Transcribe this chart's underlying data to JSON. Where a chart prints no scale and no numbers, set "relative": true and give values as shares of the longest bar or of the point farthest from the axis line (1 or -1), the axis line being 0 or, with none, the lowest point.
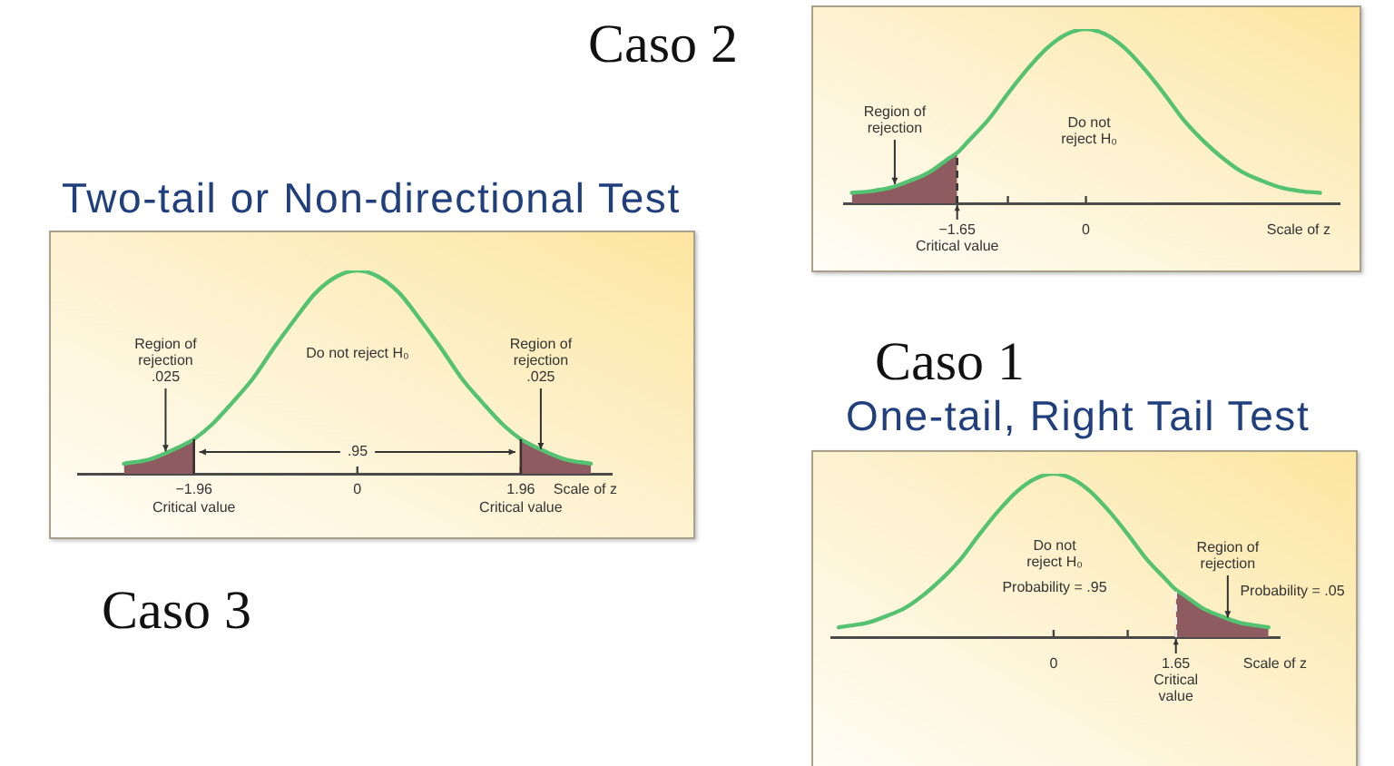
{
  "chart_data": [
    {
      "type": "line",
      "title": "Caso 2",
      "xlabel": "Scale of z",
      "relative": true,
      "marker": "none",
      "xlim": [
        -3.1,
        3.25
      ],
      "xticks": [
        {
          "value": -1.65,
          "label": "−1.65"
        },
        {
          "value": -1,
          "label": null
        },
        0
      ],
      "series": [
        {
          "color": "#55c272",
          "x": [
            -3,
            -2.75,
            -2.5,
            -2.25,
            -2,
            -1.75,
            -1.65,
            -1.5,
            -1.25,
            -1,
            -0.75,
            -0.5,
            -0.25,
            0,
            0.25,
            0.5,
            0.75,
            1,
            1.25,
            1.5,
            1.75,
            2,
            2.25,
            2.5,
            2.75,
            3
          ],
          "values": [
            0.06,
            0.07,
            0.09,
            0.13,
            0.18,
            0.26,
            0.29,
            0.36,
            0.48,
            0.63,
            0.77,
            0.89,
            0.97,
            1,
            0.97,
            0.89,
            0.77,
            0.63,
            0.48,
            0.36,
            0.26,
            0.18,
            0.13,
            0.09,
            0.07,
            0.06
          ]
        },
        {
          "type": "area",
          "color": "#8e5b60",
          "x": [
            -3,
            -2.75,
            -2.5,
            -2.25,
            -2,
            -1.75,
            -1.65
          ],
          "values": [
            0.06,
            0.07,
            0.09,
            0.13,
            0.18,
            0.26,
            0.29
          ]
        }
      ],
      "ref_lines": [
        {
          "axis": "x",
          "value": -1.65,
          "label": "Critical value",
          "line_style": "dashed",
          "color": "#333333"
        }
      ],
      "annotations": [
        {
          "text": "Region of rejection",
          "x": -2.45,
          "y": 0.11
        },
        "Do not reject H₀"
      ]
    },
    {
      "type": "line",
      "title": "Caso 3",
      "subtitle": "Two-tail or Non-directional Test",
      "xlabel": "Scale of z",
      "relative": true,
      "marker": "none",
      "xlim": [
        -3.35,
        3.05
      ],
      "xticks": [
        {
          "value": -1.96,
          "label": "−1.96"
        },
        0,
        1.96
      ],
      "series": [
        {
          "color": "#55c272",
          "x": [
            -2.8,
            -2.5,
            -2.25,
            -2,
            -1.96,
            -1.75,
            -1.5,
            -1.25,
            -1,
            -0.75,
            -0.5,
            -0.25,
            0,
            0.25,
            0.5,
            0.75,
            1,
            1.25,
            1.5,
            1.75,
            1.96,
            2,
            2.25,
            2.5,
            2.8
          ],
          "values": [
            0.05,
            0.07,
            0.11,
            0.16,
            0.17,
            0.24,
            0.35,
            0.47,
            0.62,
            0.76,
            0.89,
            0.97,
            1,
            0.97,
            0.89,
            0.76,
            0.62,
            0.47,
            0.35,
            0.24,
            0.17,
            0.16,
            0.11,
            0.07,
            0.05
          ]
        },
        {
          "type": "area",
          "color": "#8e5b60",
          "x": [
            -2.8,
            -2.5,
            -2.25,
            -2,
            -1.96
          ],
          "values": [
            0.05,
            0.07,
            0.11,
            0.16,
            0.17
          ]
        },
        {
          "type": "area",
          "color": "#8e5b60",
          "x": [
            1.96,
            2,
            2.25,
            2.5,
            2.8
          ],
          "values": [
            0.17,
            0.16,
            0.11,
            0.07,
            0.05
          ]
        }
      ],
      "ref_lines": [
        {
          "axis": "x",
          "value": -1.96,
          "label": "Critical value",
          "line_style": "solid",
          "color": "#3a3030"
        },
        {
          "axis": "x",
          "value": 1.96,
          "label": "Critical value",
          "line_style": "solid",
          "color": "#3a3030"
        }
      ],
      "annotations": [
        {
          "text": "Region of rejection .025",
          "x": -2.3,
          "y": 0.11
        },
        "Do not reject H₀",
        {
          "text": "Region of rejection .025",
          "x": 2.2,
          "y": 0.12
        },
        ".95"
      ]
    },
    {
      "type": "line",
      "title": "Caso 1",
      "subtitle": "One-tail, Right Tail Test",
      "xlabel": "Scale of z",
      "relative": true,
      "marker": "none",
      "xlim": [
        -3,
        3.05
      ],
      "xticks": [
        0,
        {
          "value": 1,
          "label": null
        },
        1.65
      ],
      "series": [
        {
          "color": "#55c272",
          "x": [
            -2.9,
            -2.75,
            -2.5,
            -2.25,
            -2,
            -1.75,
            -1.5,
            -1.25,
            -1,
            -0.75,
            -0.5,
            -0.25,
            0,
            0.25,
            0.5,
            0.75,
            1,
            1.25,
            1.5,
            1.65,
            1.75,
            2,
            2.25,
            2.5,
            2.75,
            2.9
          ],
          "values": [
            0.06,
            0.07,
            0.09,
            0.13,
            0.18,
            0.26,
            0.36,
            0.48,
            0.63,
            0.77,
            0.89,
            0.97,
            1,
            0.97,
            0.89,
            0.77,
            0.63,
            0.48,
            0.36,
            0.29,
            0.26,
            0.18,
            0.13,
            0.09,
            0.07,
            0.06
          ]
        },
        {
          "type": "area",
          "color": "#8e5b60",
          "x": [
            1.65,
            1.75,
            2,
            2.25,
            2.5,
            2.75,
            2.9
          ],
          "values": [
            0.29,
            0.26,
            0.18,
            0.13,
            0.09,
            0.07,
            0.06
          ]
        }
      ],
      "ref_lines": [
        {
          "axis": "x",
          "value": 1.65,
          "label": "Critical value",
          "line_style": "dashed",
          "color": "#eeeeee"
        }
      ],
      "annotations": [
        "Do not reject H₀",
        "Probability = .95",
        {
          "text": "Region of rejection",
          "x": 2.35,
          "y": 0.12
        },
        "Probability = .05"
      ]
    }
  ]
}
